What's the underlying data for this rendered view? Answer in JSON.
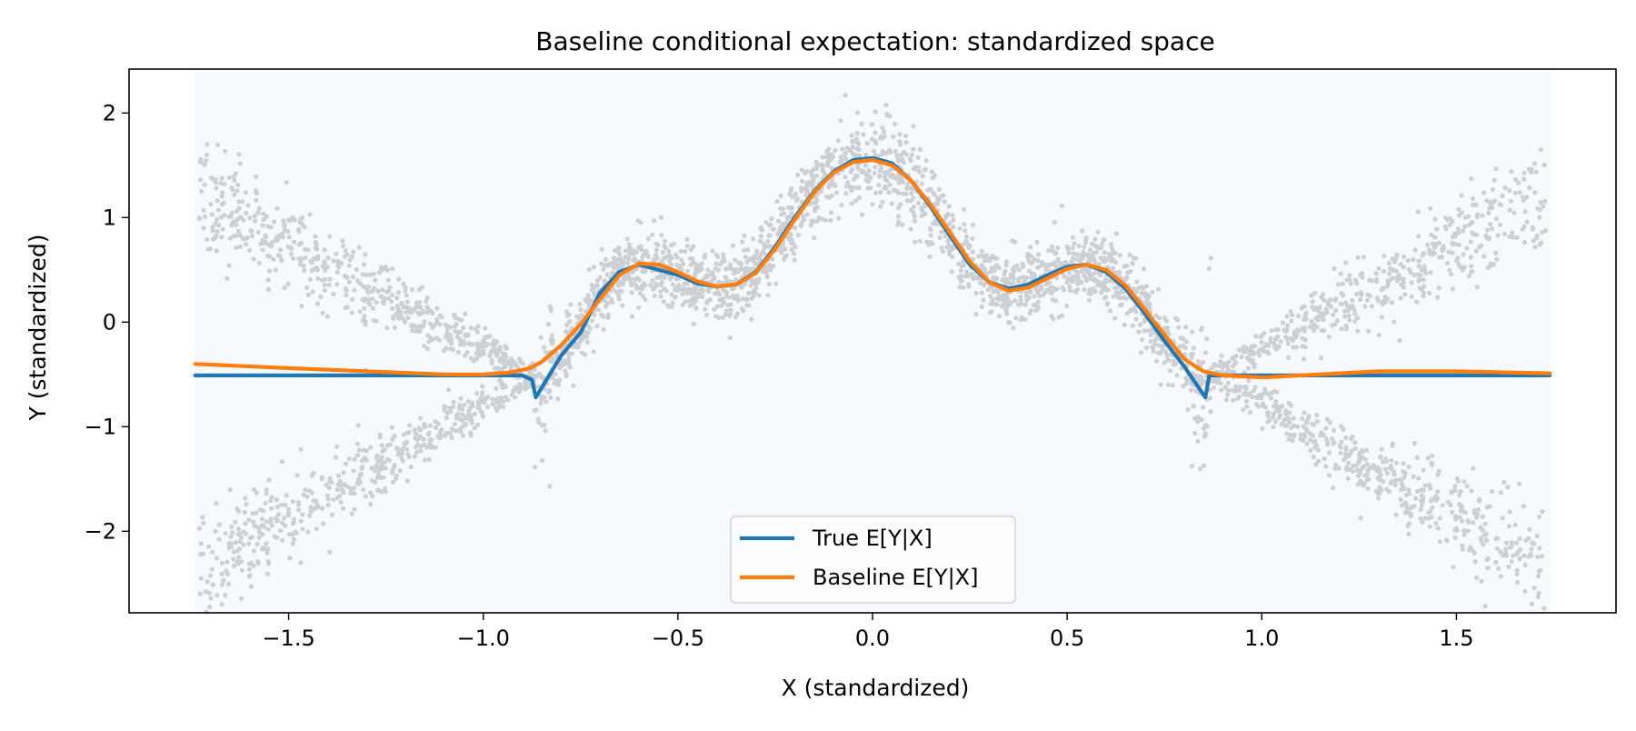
{
  "chart_data": {
    "type": "scatter",
    "title": "Baseline conditional expectation: standardized space",
    "xlabel": "X (standardized)",
    "ylabel": "Y (standardized)",
    "xlim": [
      -1.91,
      1.91
    ],
    "ylim": [
      -2.78,
      2.42
    ],
    "x_ticks": [
      -1.5,
      -1.0,
      -0.5,
      0.0,
      0.5,
      1.0,
      1.5
    ],
    "x_tick_labels": [
      "−1.5",
      "−1.0",
      "−0.5",
      "0.0",
      "0.5",
      "1.0",
      "1.5"
    ],
    "y_ticks": [
      -2,
      -1,
      0,
      1,
      2
    ],
    "y_tick_labels": [
      "−2",
      "−1",
      "0",
      "1",
      "2"
    ],
    "grid": false,
    "legend_position": "lower center",
    "shaded_region_x": [
      -1.74,
      1.74
    ],
    "scatter_description": "noisy samples: X-shaped arms for |x|>0.87, central bumps between",
    "series": [
      {
        "name": "True E[Y|X]",
        "color": "#1f77b4",
        "x": [
          -1.74,
          -1.5,
          -1.2,
          -1.0,
          -0.9,
          -0.875,
          -0.865,
          -0.8,
          -0.75,
          -0.7,
          -0.65,
          -0.6,
          -0.5,
          -0.45,
          -0.4,
          -0.35,
          -0.3,
          -0.25,
          -0.2,
          -0.15,
          -0.1,
          -0.05,
          0.0,
          0.05,
          0.1,
          0.15,
          0.2,
          0.25,
          0.3,
          0.35,
          0.4,
          0.45,
          0.5,
          0.55,
          0.6,
          0.65,
          0.7,
          0.75,
          0.8,
          0.855,
          0.865,
          0.9,
          1.0,
          1.2,
          1.5,
          1.74
        ],
        "y": [
          -0.51,
          -0.51,
          -0.51,
          -0.51,
          -0.51,
          -0.55,
          -0.72,
          -0.32,
          -0.1,
          0.28,
          0.48,
          0.55,
          0.45,
          0.37,
          0.34,
          0.36,
          0.48,
          0.72,
          1.0,
          1.25,
          1.44,
          1.55,
          1.57,
          1.52,
          1.35,
          1.1,
          0.82,
          0.55,
          0.38,
          0.32,
          0.36,
          0.45,
          0.53,
          0.55,
          0.48,
          0.32,
          0.08,
          -0.18,
          -0.42,
          -0.72,
          -0.51,
          -0.51,
          -0.51,
          -0.51,
          -0.51,
          -0.51
        ]
      },
      {
        "name": "Baseline E[Y|X]",
        "color": "#ff7f0e",
        "x": [
          -1.74,
          -1.5,
          -1.3,
          -1.1,
          -1.0,
          -0.93,
          -0.88,
          -0.85,
          -0.8,
          -0.75,
          -0.7,
          -0.65,
          -0.6,
          -0.55,
          -0.5,
          -0.45,
          -0.4,
          -0.35,
          -0.3,
          -0.25,
          -0.2,
          -0.15,
          -0.1,
          -0.05,
          0.0,
          0.05,
          0.1,
          0.15,
          0.2,
          0.25,
          0.3,
          0.35,
          0.4,
          0.45,
          0.5,
          0.55,
          0.6,
          0.65,
          0.7,
          0.75,
          0.8,
          0.85,
          0.9,
          1.0,
          1.1,
          1.3,
          1.5,
          1.74
        ],
        "y": [
          -0.4,
          -0.44,
          -0.47,
          -0.5,
          -0.5,
          -0.48,
          -0.44,
          -0.38,
          -0.22,
          -0.02,
          0.22,
          0.45,
          0.56,
          0.55,
          0.48,
          0.39,
          0.34,
          0.36,
          0.47,
          0.7,
          0.98,
          1.24,
          1.43,
          1.53,
          1.55,
          1.5,
          1.35,
          1.12,
          0.85,
          0.58,
          0.38,
          0.3,
          0.33,
          0.42,
          0.51,
          0.55,
          0.5,
          0.35,
          0.12,
          -0.12,
          -0.35,
          -0.47,
          -0.51,
          -0.53,
          -0.51,
          -0.47,
          -0.47,
          -0.49
        ]
      }
    ]
  }
}
